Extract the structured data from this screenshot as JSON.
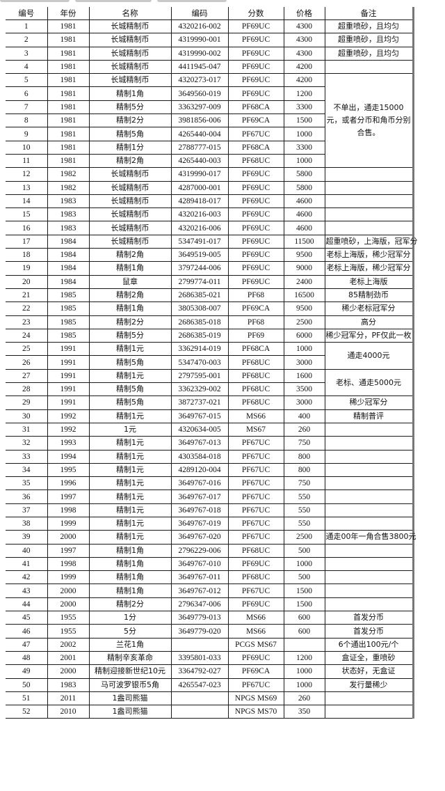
{
  "headers": [
    "编号",
    "年份",
    "名称",
    "编码",
    "分数",
    "价格",
    "备注"
  ],
  "rows": [
    [
      "1",
      "1981",
      "长城精制币",
      "4320216-002",
      "PF69UC",
      "4300"
    ],
    [
      "2",
      "1981",
      "长城精制币",
      "4319990-001",
      "PF69UC",
      "4300"
    ],
    [
      "3",
      "1981",
      "长城精制币",
      "4319990-002",
      "PF69UC",
      "4300"
    ],
    [
      "4",
      "1981",
      "长城精制币",
      "4411945-047",
      "PF69UC",
      "4200"
    ],
    [
      "5",
      "1981",
      "长城精制币",
      "4320273-017",
      "PF69UC",
      "4200"
    ],
    [
      "6",
      "1981",
      "精制1角",
      "3649560-019",
      "PF69UC",
      "1200"
    ],
    [
      "7",
      "1981",
      "精制5分",
      "3363297-009",
      "PF68CA",
      "3300"
    ],
    [
      "8",
      "1981",
      "精制2分",
      "3981856-006",
      "PF69CA",
      "1500"
    ],
    [
      "9",
      "1981",
      "精制5角",
      "4265440-004",
      "PF67UC",
      "1000"
    ],
    [
      "10",
      "1981",
      "精制1分",
      "2788777-015",
      "PF68CA",
      "3300"
    ],
    [
      "11",
      "1981",
      "精制2角",
      "4265440-003",
      "PF68UC",
      "1000"
    ],
    [
      "12",
      "1982",
      "长城精制币",
      "4319990-017",
      "PF69UC",
      "5800"
    ],
    [
      "13",
      "1982",
      "长城精制币",
      "4287000-001",
      "PF69UC",
      "5800"
    ],
    [
      "14",
      "1983",
      "长城精制币",
      "4289418-017",
      "PF69UC",
      "4600"
    ],
    [
      "15",
      "1983",
      "长城精制币",
      "4320216-003",
      "PF69UC",
      "4600"
    ],
    [
      "16",
      "1983",
      "长城精制币",
      "4320216-006",
      "PF69UC",
      "4600"
    ],
    [
      "17",
      "1984",
      "长城精制币",
      "5347491-017",
      "PF69UC",
      "11500"
    ],
    [
      "18",
      "1984",
      "精制2角",
      "3649519-005",
      "PF69UC",
      "9500"
    ],
    [
      "19",
      "1984",
      "精制1角",
      "3797244-006",
      "PF69UC",
      "9000"
    ],
    [
      "20",
      "1984",
      "鼠章",
      "2799774-011",
      "PF69UC",
      "2400"
    ],
    [
      "21",
      "1985",
      "精制2角",
      "2686385-021",
      "PF68",
      "16500"
    ],
    [
      "22",
      "1985",
      "精制1角",
      "3805308-007",
      "PF69CA",
      "9500"
    ],
    [
      "23",
      "1985",
      "精制2分",
      "2686385-018",
      "PF68",
      "2500"
    ],
    [
      "24",
      "1985",
      "精制5分",
      "2686385-019",
      "PF69",
      "6000"
    ],
    [
      "25",
      "1991",
      "精制1元",
      "3362914-019",
      "PF68CA",
      "1000"
    ],
    [
      "26",
      "1991",
      "精制5角",
      "5347470-003",
      "PF68UC",
      "3000"
    ],
    [
      "27",
      "1991",
      "精制1元",
      "2797595-001",
      "PF68UC",
      "1600"
    ],
    [
      "28",
      "1991",
      "精制5角",
      "3362329-002",
      "PF68UC",
      "3500"
    ],
    [
      "29",
      "1991",
      "精制5角",
      "3872737-021",
      "PF68UC",
      "3000"
    ],
    [
      "30",
      "1992",
      "精制1元",
      "3649767-015",
      "MS66",
      "400"
    ],
    [
      "31",
      "1992",
      "1元",
      "4320634-005",
      "MS67",
      "260"
    ],
    [
      "32",
      "1993",
      "精制1元",
      "3649767-013",
      "PF67UC",
      "750"
    ],
    [
      "33",
      "1994",
      "精制1元",
      "4303584-018",
      "PF67UC",
      "800"
    ],
    [
      "34",
      "1995",
      "精制1元",
      "4289120-004",
      "PF67UC",
      "800"
    ],
    [
      "35",
      "1996",
      "精制1元",
      "3649767-016",
      "PF67UC",
      "750"
    ],
    [
      "36",
      "1997",
      "精制1元",
      "3649767-017",
      "PF67UC",
      "550"
    ],
    [
      "37",
      "1998",
      "精制1元",
      "3649767-018",
      "PF67UC",
      "550"
    ],
    [
      "38",
      "1999",
      "精制1元",
      "3649767-019",
      "PF67UC",
      "550"
    ],
    [
      "39",
      "2000",
      "精制1元",
      "3649767-020",
      "PF67UC",
      "2500"
    ],
    [
      "40",
      "1997",
      "精制1角",
      "2796229-006",
      "PF68UC",
      "500"
    ],
    [
      "41",
      "1998",
      "精制1角",
      "3649767-010",
      "PF69UC",
      "1000"
    ],
    [
      "42",
      "1999",
      "精制1角",
      "3649767-011",
      "PF68UC",
      "500"
    ],
    [
      "43",
      "2000",
      "精制1角",
      "3649767-012",
      "PF67UC",
      "1500"
    ],
    [
      "44",
      "2000",
      "精制2分",
      "2796347-006",
      "PF69UC",
      "1500"
    ],
    [
      "45",
      "1955",
      "1分",
      "3649779-013",
      "MS66",
      "600"
    ],
    [
      "46",
      "1955",
      "5分",
      "3649779-020",
      "MS66",
      "600"
    ],
    [
      "47",
      "2002",
      "兰花1角",
      "",
      "PCGS MS67",
      ""
    ],
    [
      "48",
      "2001",
      "精制辛亥革命",
      "3395801-033",
      "PF69UC",
      "1200"
    ],
    [
      "49",
      "2000",
      "精制迎接新世纪10元",
      "3364792-027",
      "PF69CA",
      "1000"
    ],
    [
      "50",
      "1983",
      "马可波罗银币5角",
      "4265547-023",
      "PF67UC",
      "1000"
    ],
    [
      "51",
      "2011",
      "1盎司熊猫",
      "",
      "NPGS MS69",
      "260"
    ],
    [
      "52",
      "2010",
      "1盎司熊猫",
      "",
      "NPGS MS70",
      "350"
    ]
  ],
  "remarks": [
    {
      "from": 1,
      "to": 1,
      "text": "超重喷砂，且均匀"
    },
    {
      "from": 2,
      "to": 2,
      "text": "超重喷砂，且均匀"
    },
    {
      "from": 3,
      "to": 3,
      "text": "超重喷砂，且均匀"
    },
    {
      "from": 5,
      "to": 11,
      "text": "不单出，通走15000元，或者分币和角币分别合售。"
    },
    {
      "from": 17,
      "to": 17,
      "text": "超重喷砂，上海版，冠军分"
    },
    {
      "from": 18,
      "to": 18,
      "text": "老标上海版，稀少冠军分"
    },
    {
      "from": 19,
      "to": 19,
      "text": "老标上海版，稀少冠军分"
    },
    {
      "from": 20,
      "to": 20,
      "text": "老标上海版"
    },
    {
      "from": 21,
      "to": 21,
      "text": "85精制劲币"
    },
    {
      "from": 22,
      "to": 22,
      "text": "稀少老标冠军分"
    },
    {
      "from": 23,
      "to": 23,
      "text": "高分"
    },
    {
      "from": 24,
      "to": 24,
      "text": "稀少冠军分，PF仅此一枚"
    },
    {
      "from": 25,
      "to": 26,
      "text": "通走4000元"
    },
    {
      "from": 27,
      "to": 28,
      "text": "老标、通走5000元"
    },
    {
      "from": 29,
      "to": 29,
      "text": "稀少冠军分"
    },
    {
      "from": 30,
      "to": 30,
      "text": "精制普评"
    },
    {
      "from": 39,
      "to": 39,
      "text": "通走00年一角合售3800元"
    },
    {
      "from": 45,
      "to": 45,
      "text": "首发分币"
    },
    {
      "from": 46,
      "to": 46,
      "text": "首发分币"
    },
    {
      "from": 47,
      "to": 47,
      "text": "6个通出100元/个"
    },
    {
      "from": 48,
      "to": 48,
      "text": "盒证全，重喷砂"
    },
    {
      "from": 49,
      "to": 49,
      "text": "状态好，无盒证"
    },
    {
      "from": 50,
      "to": 50,
      "text": "发行量稀少"
    }
  ]
}
